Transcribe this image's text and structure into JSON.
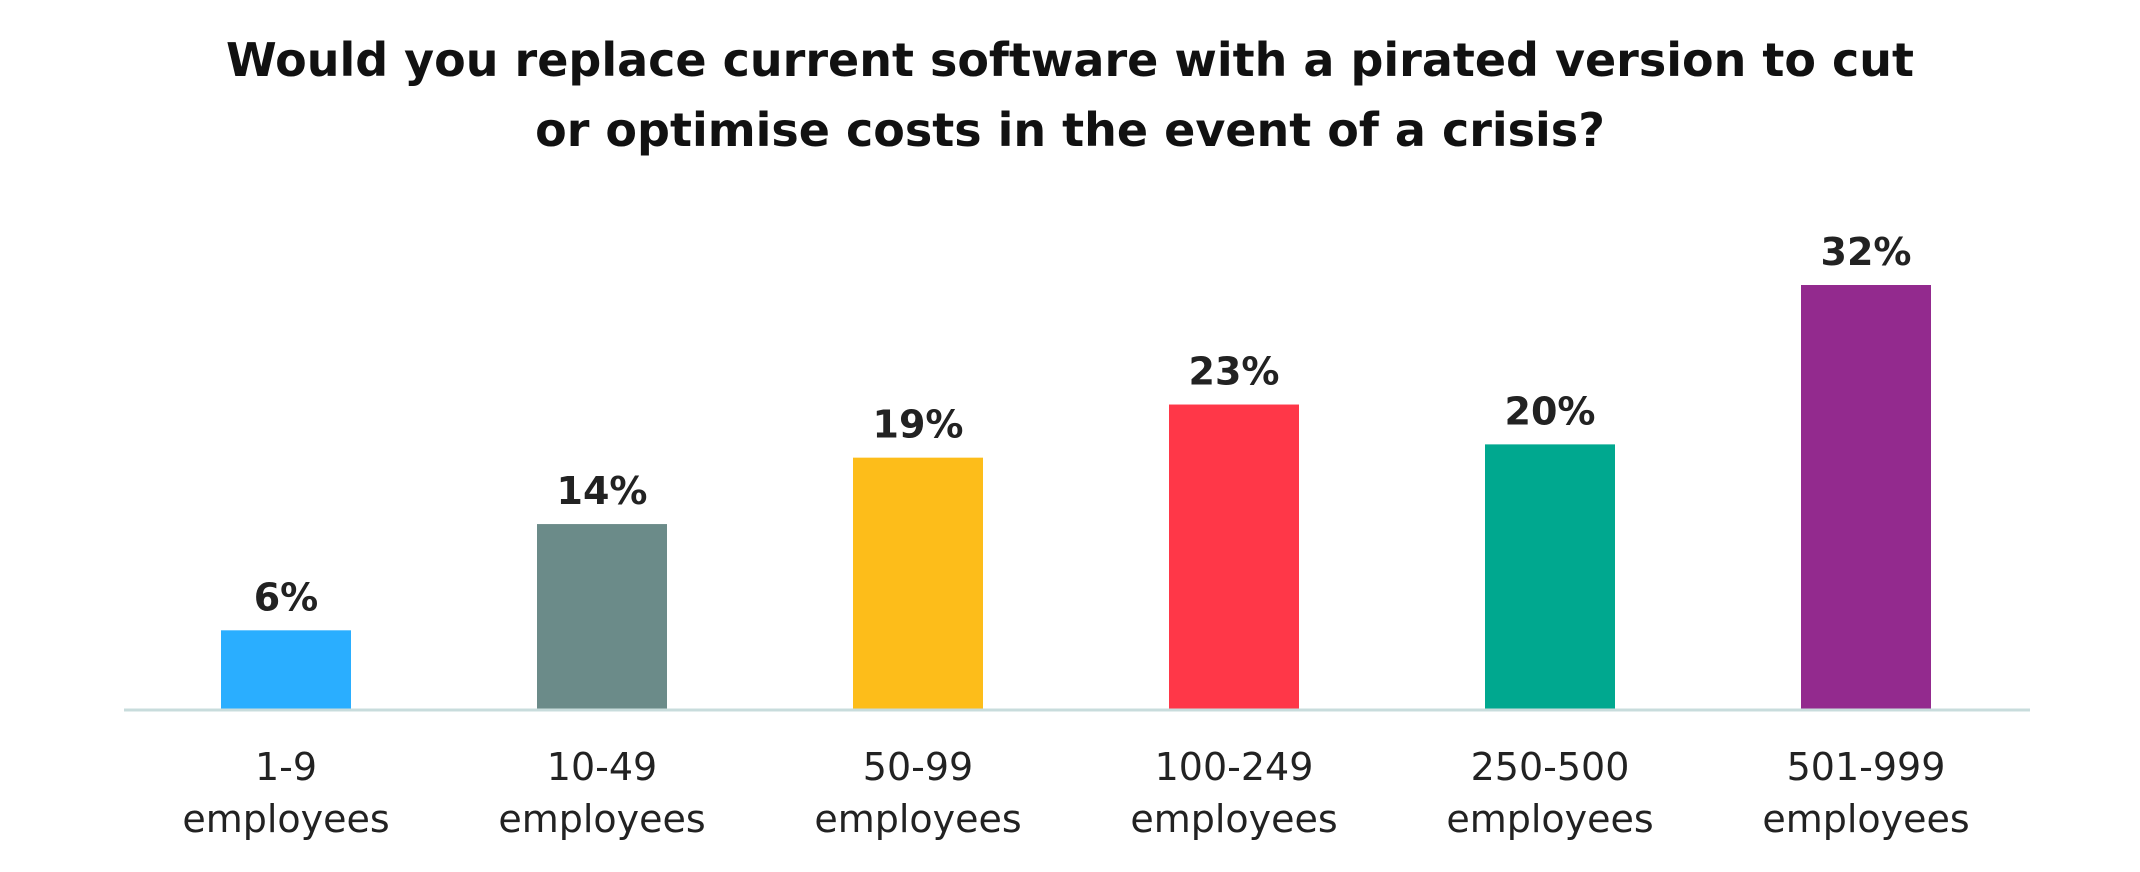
{
  "chart_data": {
    "type": "bar",
    "title": [
      "Would you replace current software with a pirated version to cut",
      "or optimise costs in the event of a crisis?"
    ],
    "categories": [
      [
        "1-9",
        "employees"
      ],
      [
        "10-49",
        "employees"
      ],
      [
        "50-99",
        "employees"
      ],
      [
        "100-249",
        "employees"
      ],
      [
        "250-500",
        "employees"
      ],
      [
        "501-999",
        "employees"
      ]
    ],
    "values": [
      6,
      14,
      19,
      23,
      20,
      32
    ],
    "value_labels": [
      "6%",
      "14%",
      "19%",
      "23%",
      "20%",
      "32%"
    ],
    "colors": [
      "#2aaeff",
      "#6b8b89",
      "#fdbd1a",
      "#ff3748",
      "#00a88f",
      "#932a8e"
    ],
    "axis_color": "#c8dcdc",
    "xlabel": "",
    "ylabel": "",
    "ylim": [
      0,
      32
    ],
    "grid": false,
    "legend": "none"
  }
}
